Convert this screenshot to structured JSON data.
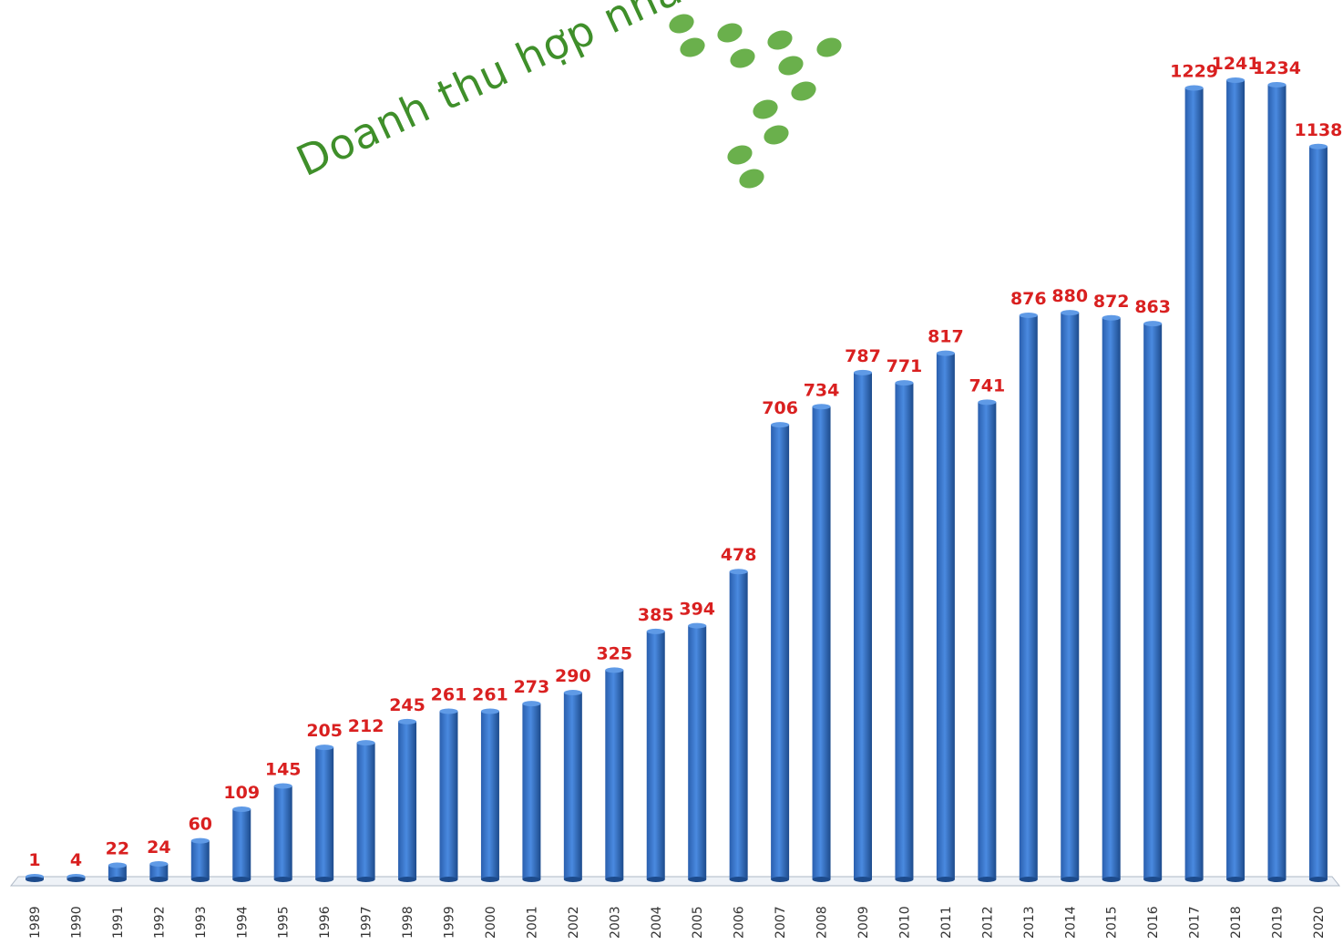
{
  "chart_data": {
    "type": "bar",
    "title": "Doanh thu hợp nhất",
    "xlabel": "",
    "ylabel": "",
    "ylim": [
      0,
      1300
    ],
    "grid": false,
    "legend": "none",
    "categories": [
      "1989",
      "1990",
      "1991",
      "1992",
      "1993",
      "1994",
      "1995",
      "1996",
      "1997",
      "1998",
      "1999",
      "2000",
      "2001",
      "2002",
      "2003",
      "2004",
      "2005",
      "2006",
      "2007",
      "2008",
      "2009",
      "2010",
      "2011",
      "2012",
      "2013",
      "2014",
      "2015",
      "2016",
      "2017",
      "2018",
      "2019",
      "2020"
    ],
    "values": [
      1,
      4,
      22,
      24,
      60,
      109,
      145,
      205,
      212,
      245,
      261,
      261,
      273,
      290,
      325,
      385,
      394,
      478,
      706,
      734,
      787,
      771,
      817,
      741,
      876,
      880,
      872,
      863,
      1229,
      1241,
      1234,
      1138
    ],
    "colors": {
      "bar": "#3a78c9",
      "bar_dark": "#1f4f92",
      "label": "#d92020",
      "title": "#3f8f2a",
      "dots": "#6ab04c"
    }
  }
}
